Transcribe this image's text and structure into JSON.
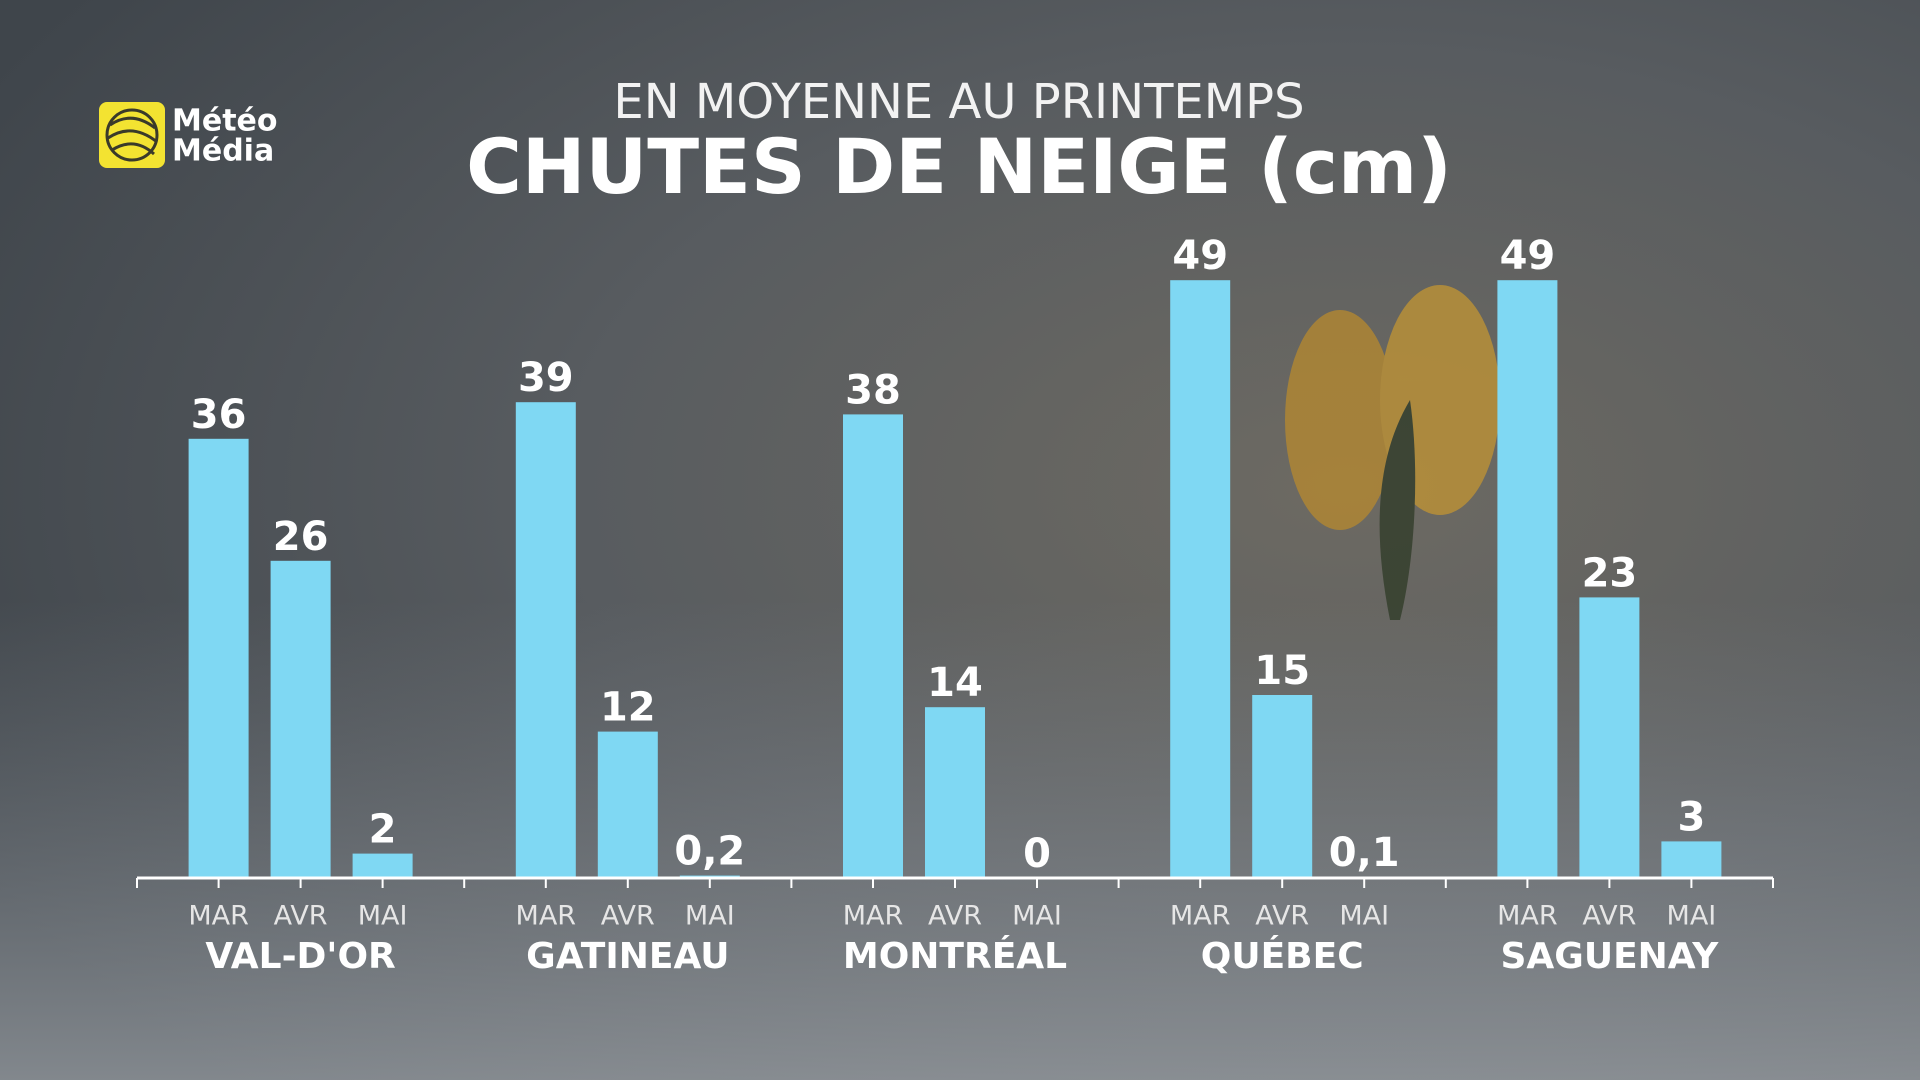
{
  "logo": [
    "Météo",
    "Média"
  ],
  "chart_data": {
    "type": "bar",
    "subtitle": "EN MOYENNE AU PRINTEMPS",
    "title": "CHUTES DE NEIGE (cm)",
    "categories": [
      "VAL-D'OR",
      "GATINEAU",
      "MONTRÉAL",
      "QUÉBEC",
      "SAGUENAY"
    ],
    "series": [
      {
        "name": "MAR",
        "color": "#7fd8f3",
        "values": [
          36,
          39,
          38,
          49,
          49
        ]
      },
      {
        "name": "AVR",
        "color": "#7fd8f3",
        "values": [
          26,
          12,
          14,
          15,
          23
        ]
      },
      {
        "name": "MAI",
        "color": "#7fd8f3",
        "values": [
          2,
          0.2,
          0,
          0.1,
          3
        ],
        "value_labels": [
          "2",
          "0,2",
          "0",
          "0,1",
          "3"
        ]
      }
    ],
    "ylim": [
      0,
      50
    ]
  }
}
